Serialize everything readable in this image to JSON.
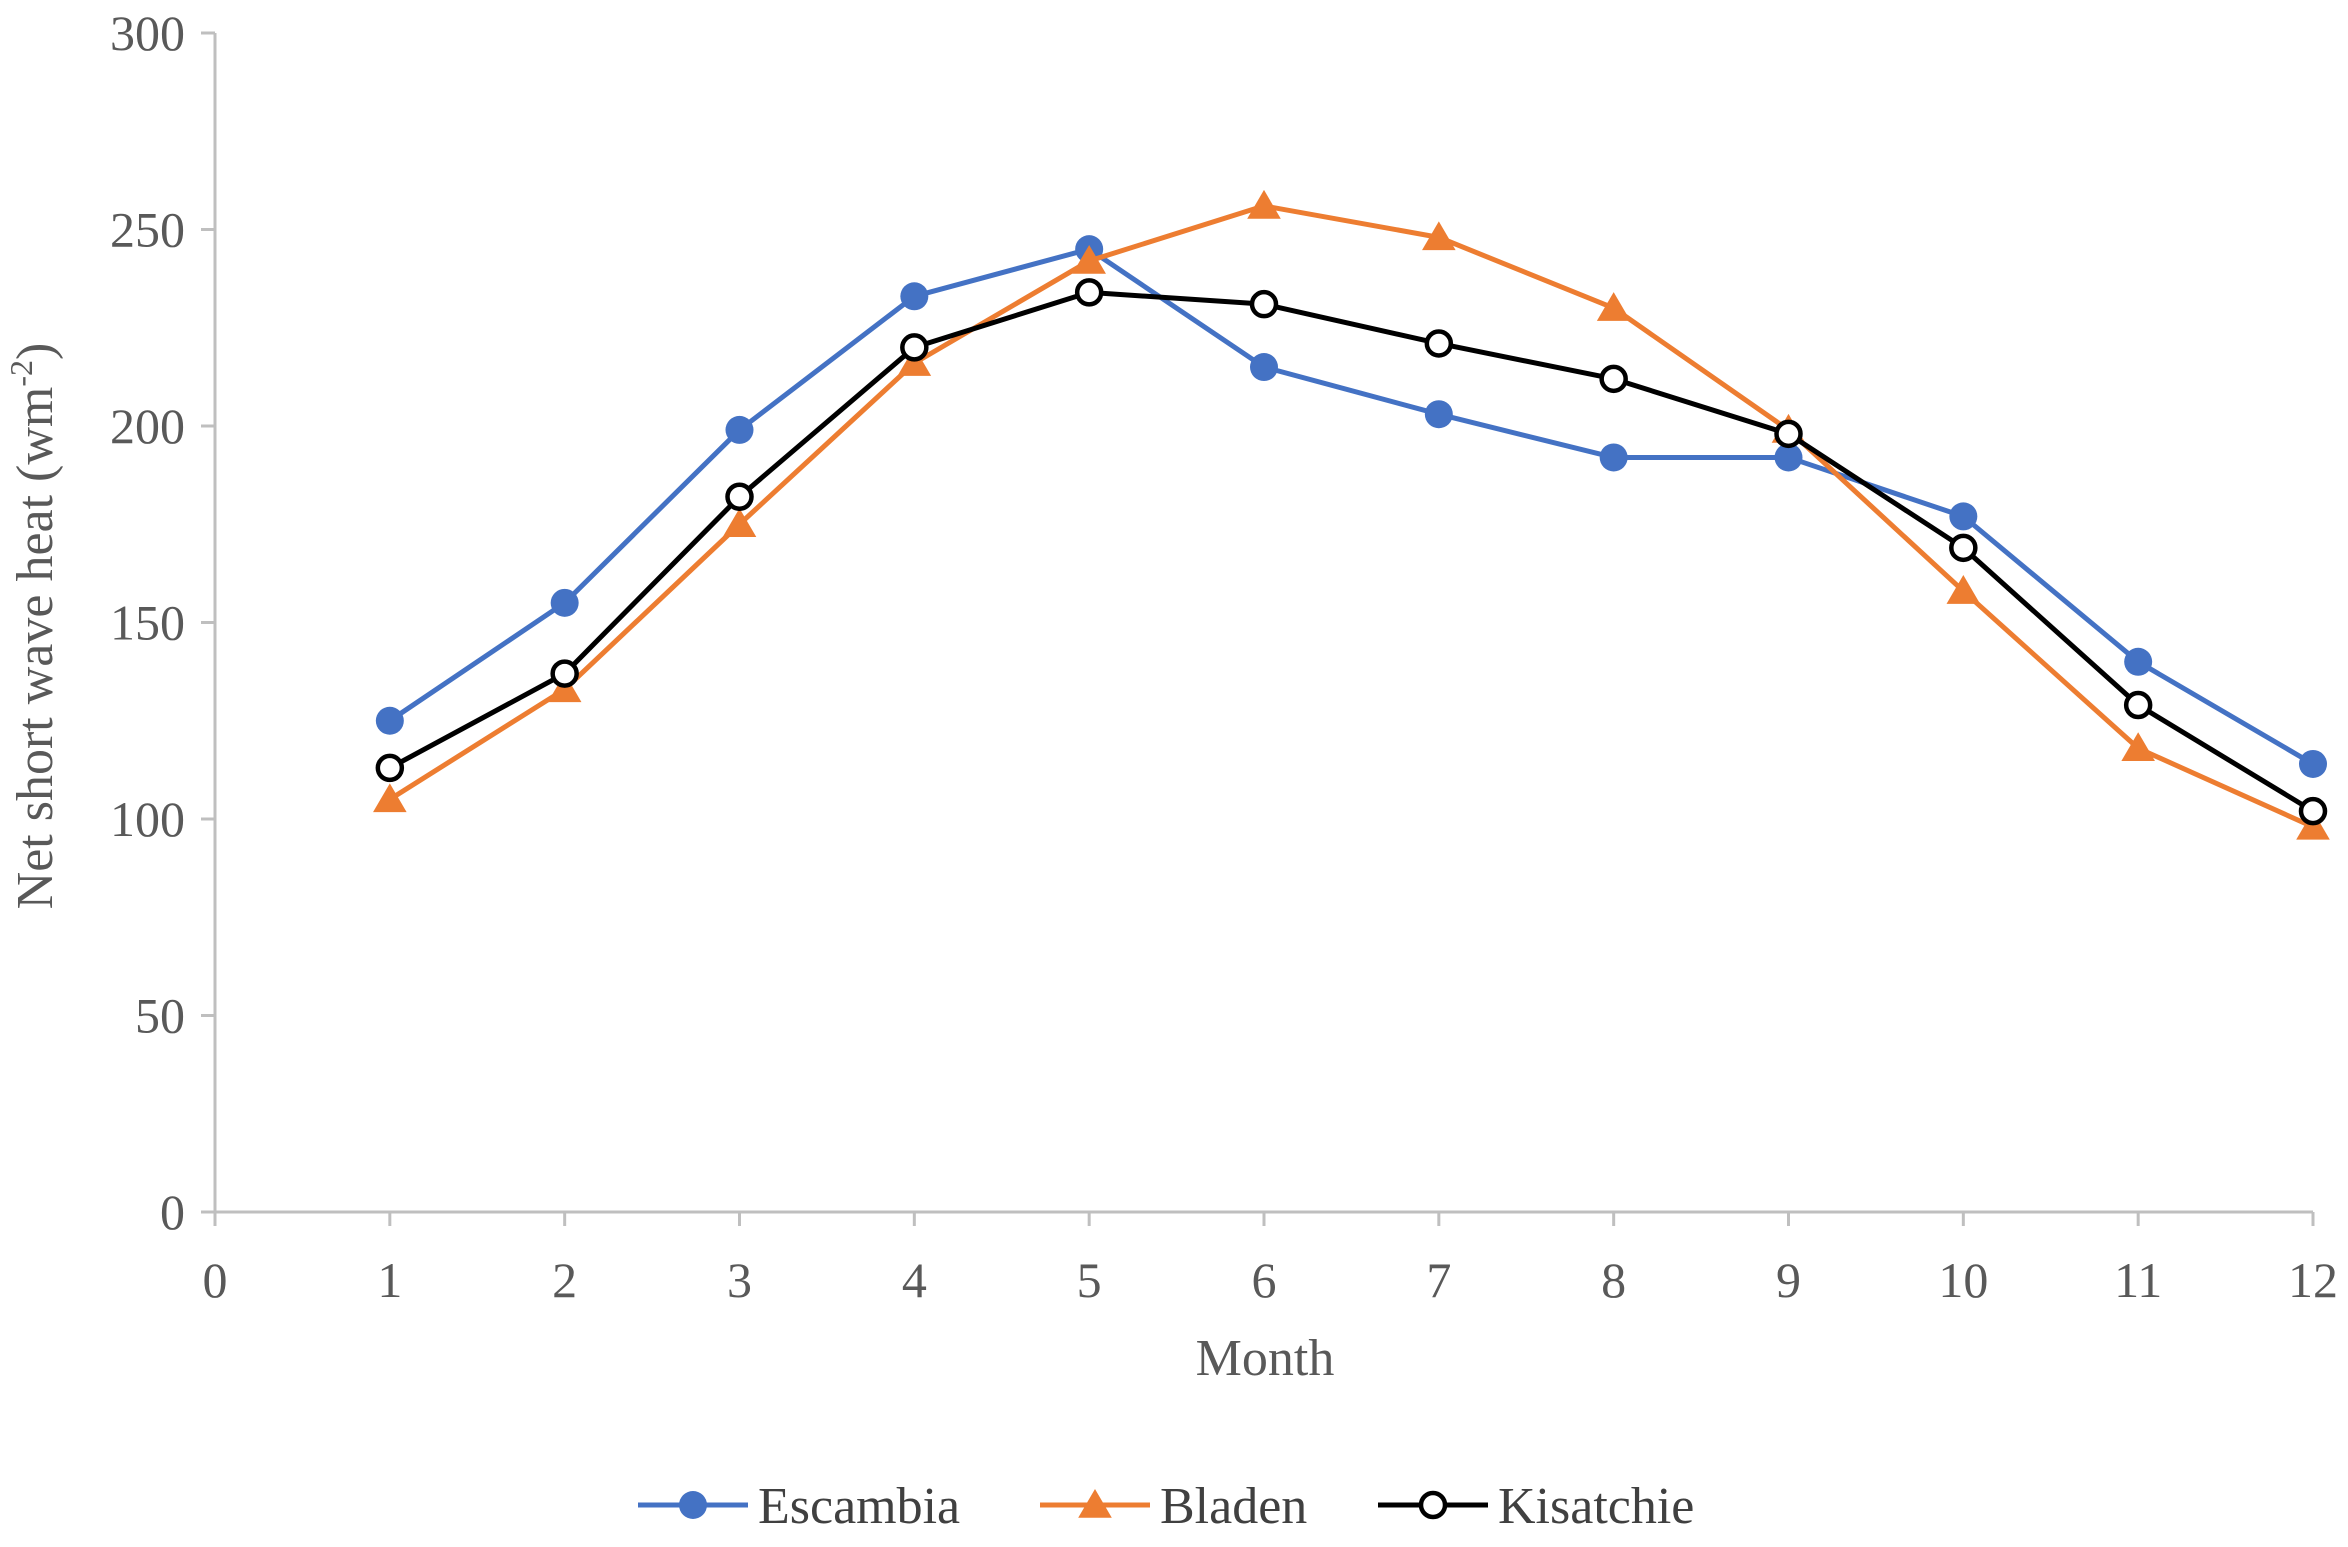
{
  "chart_data": {
    "type": "line",
    "title": "",
    "xlabel": "Month",
    "ylabel_main": "Net short wave heat (wm",
    "ylabel_sup": "-2",
    "ylabel_close": ")",
    "xlim": [
      0,
      12
    ],
    "ylim": [
      0,
      300
    ],
    "x_ticks": [
      0,
      1,
      2,
      3,
      4,
      5,
      6,
      7,
      8,
      9,
      10,
      11,
      12
    ],
    "y_ticks": [
      0,
      50,
      100,
      150,
      200,
      250,
      300
    ],
    "grid": false,
    "legend_position": "bottom-center",
    "x": [
      1,
      2,
      3,
      4,
      5,
      6,
      7,
      8,
      9,
      10,
      11,
      12
    ],
    "series": [
      {
        "name": "Escambia",
        "color": "#4472C4",
        "marker": "filled-circle",
        "values": [
          125,
          155,
          199,
          233,
          245,
          215,
          203,
          192,
          192,
          177,
          140,
          114
        ]
      },
      {
        "name": "Bladen",
        "color": "#ED7D31",
        "marker": "triangle",
        "values": [
          105,
          133,
          175,
          216,
          242,
          256,
          248,
          230,
          199,
          158,
          118,
          98
        ]
      },
      {
        "name": "Kisatchie",
        "color": "#000000",
        "marker": "open-circle",
        "values": [
          113,
          137,
          182,
          220,
          234,
          231,
          221,
          212,
          198,
          169,
          129,
          102
        ]
      }
    ]
  }
}
